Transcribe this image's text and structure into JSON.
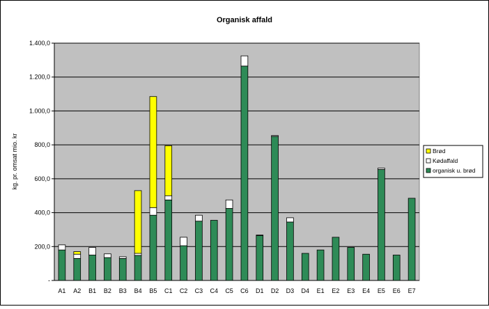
{
  "colors": {
    "plot_background": "#c0c0c0",
    "chart_background": "#ffffff",
    "grid": "#000000",
    "frame": "#000000",
    "bar_green": "#2e8b57",
    "bar_white": "#ffffff",
    "bar_yellow": "#ffff00"
  },
  "chart_data": {
    "type": "bar",
    "stacked": true,
    "title": "Organisk affald",
    "xlabel": "",
    "ylabel": "kg. pr. omsat mio. kr",
    "ylim": [
      0,
      1400
    ],
    "yticks": [
      "-",
      "200,0",
      "400,0",
      "600,0",
      "800,0",
      "1.000,0",
      "1.200,0",
      "1.400,0"
    ],
    "grid": true,
    "legend_position": "right",
    "categories": [
      "A1",
      "A2",
      "B1",
      "B2",
      "B3",
      "B4",
      "B5",
      "C1",
      "C2",
      "C3",
      "C4",
      "C5",
      "C6",
      "D1",
      "D2",
      "D3",
      "D4",
      "E1",
      "E2",
      "E3",
      "E4",
      "E5",
      "E6",
      "E7"
    ],
    "series": [
      {
        "name": "organisk u. brød",
        "color": "#2e8b57",
        "values": [
          180,
          130,
          150,
          135,
          130,
          148,
          385,
          475,
          205,
          350,
          355,
          425,
          1265,
          265,
          850,
          345,
          160,
          180,
          255,
          195,
          155,
          655,
          150,
          485
        ]
      },
      {
        "name": "Kødaffald",
        "color": "#ffffff",
        "values": [
          30,
          25,
          45,
          22,
          10,
          12,
          45,
          25,
          50,
          35,
          0,
          50,
          60,
          3,
          5,
          25,
          0,
          0,
          0,
          0,
          0,
          8,
          0,
          0
        ]
      },
      {
        "name": "Brød",
        "color": "#ffff00",
        "values": [
          0,
          15,
          0,
          0,
          0,
          370,
          655,
          295,
          0,
          0,
          0,
          0,
          0,
          0,
          0,
          0,
          0,
          0,
          0,
          0,
          0,
          0,
          0,
          0
        ]
      }
    ],
    "legend": [
      "Brød",
      "Kødaffald",
      "organisk u. brød"
    ]
  }
}
